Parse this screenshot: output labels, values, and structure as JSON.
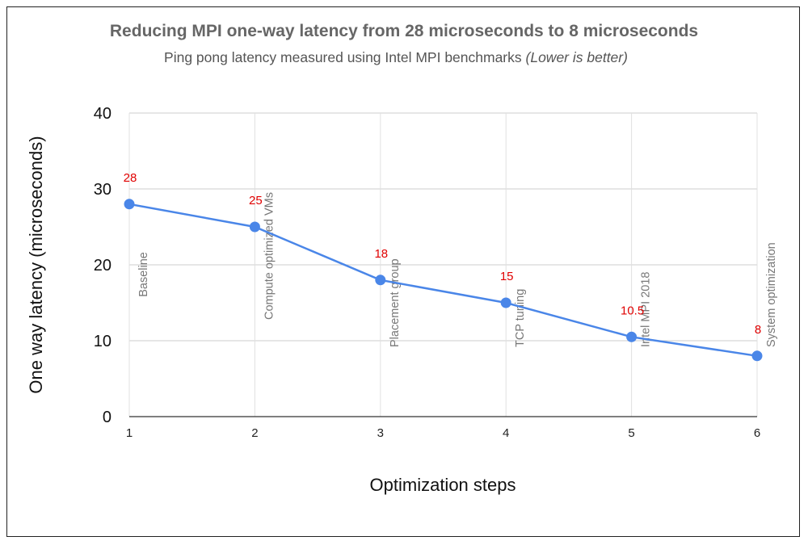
{
  "chart_data": {
    "type": "line",
    "title": "Reducing MPI one-way latency from 28 microseconds to 8 microseconds",
    "subtitle": "Ping pong latency measured using Intel MPI benchmarks",
    "subtitle_note": "(Lower is better)",
    "xlabel": "Optimization steps",
    "ylabel": "One way latency (microseconds)",
    "x": [
      1,
      2,
      3,
      4,
      5,
      6
    ],
    "x_tick_labels": [
      "1",
      "2",
      "3",
      "4",
      "5",
      "6"
    ],
    "values": [
      28,
      25,
      18,
      15,
      10.5,
      8
    ],
    "data_labels": [
      "28",
      "25",
      "18",
      "15",
      "10.5",
      "8"
    ],
    "annotations": [
      "Baseline",
      "Compute optimized VMs",
      "Placement group",
      "TCP tuning",
      "Intel MPI 2018",
      "System optimization"
    ],
    "ylim": [
      0,
      40
    ],
    "y_ticks": [
      0,
      10,
      20,
      30,
      40
    ],
    "y_tick_labels": [
      "0",
      "10",
      "20",
      "30",
      "40"
    ],
    "grid": true,
    "legend": "none",
    "colors": {
      "line": "#4a86e8",
      "data_label": "#e00000",
      "annotation": "#777777",
      "grid": "#cccccc"
    }
  }
}
